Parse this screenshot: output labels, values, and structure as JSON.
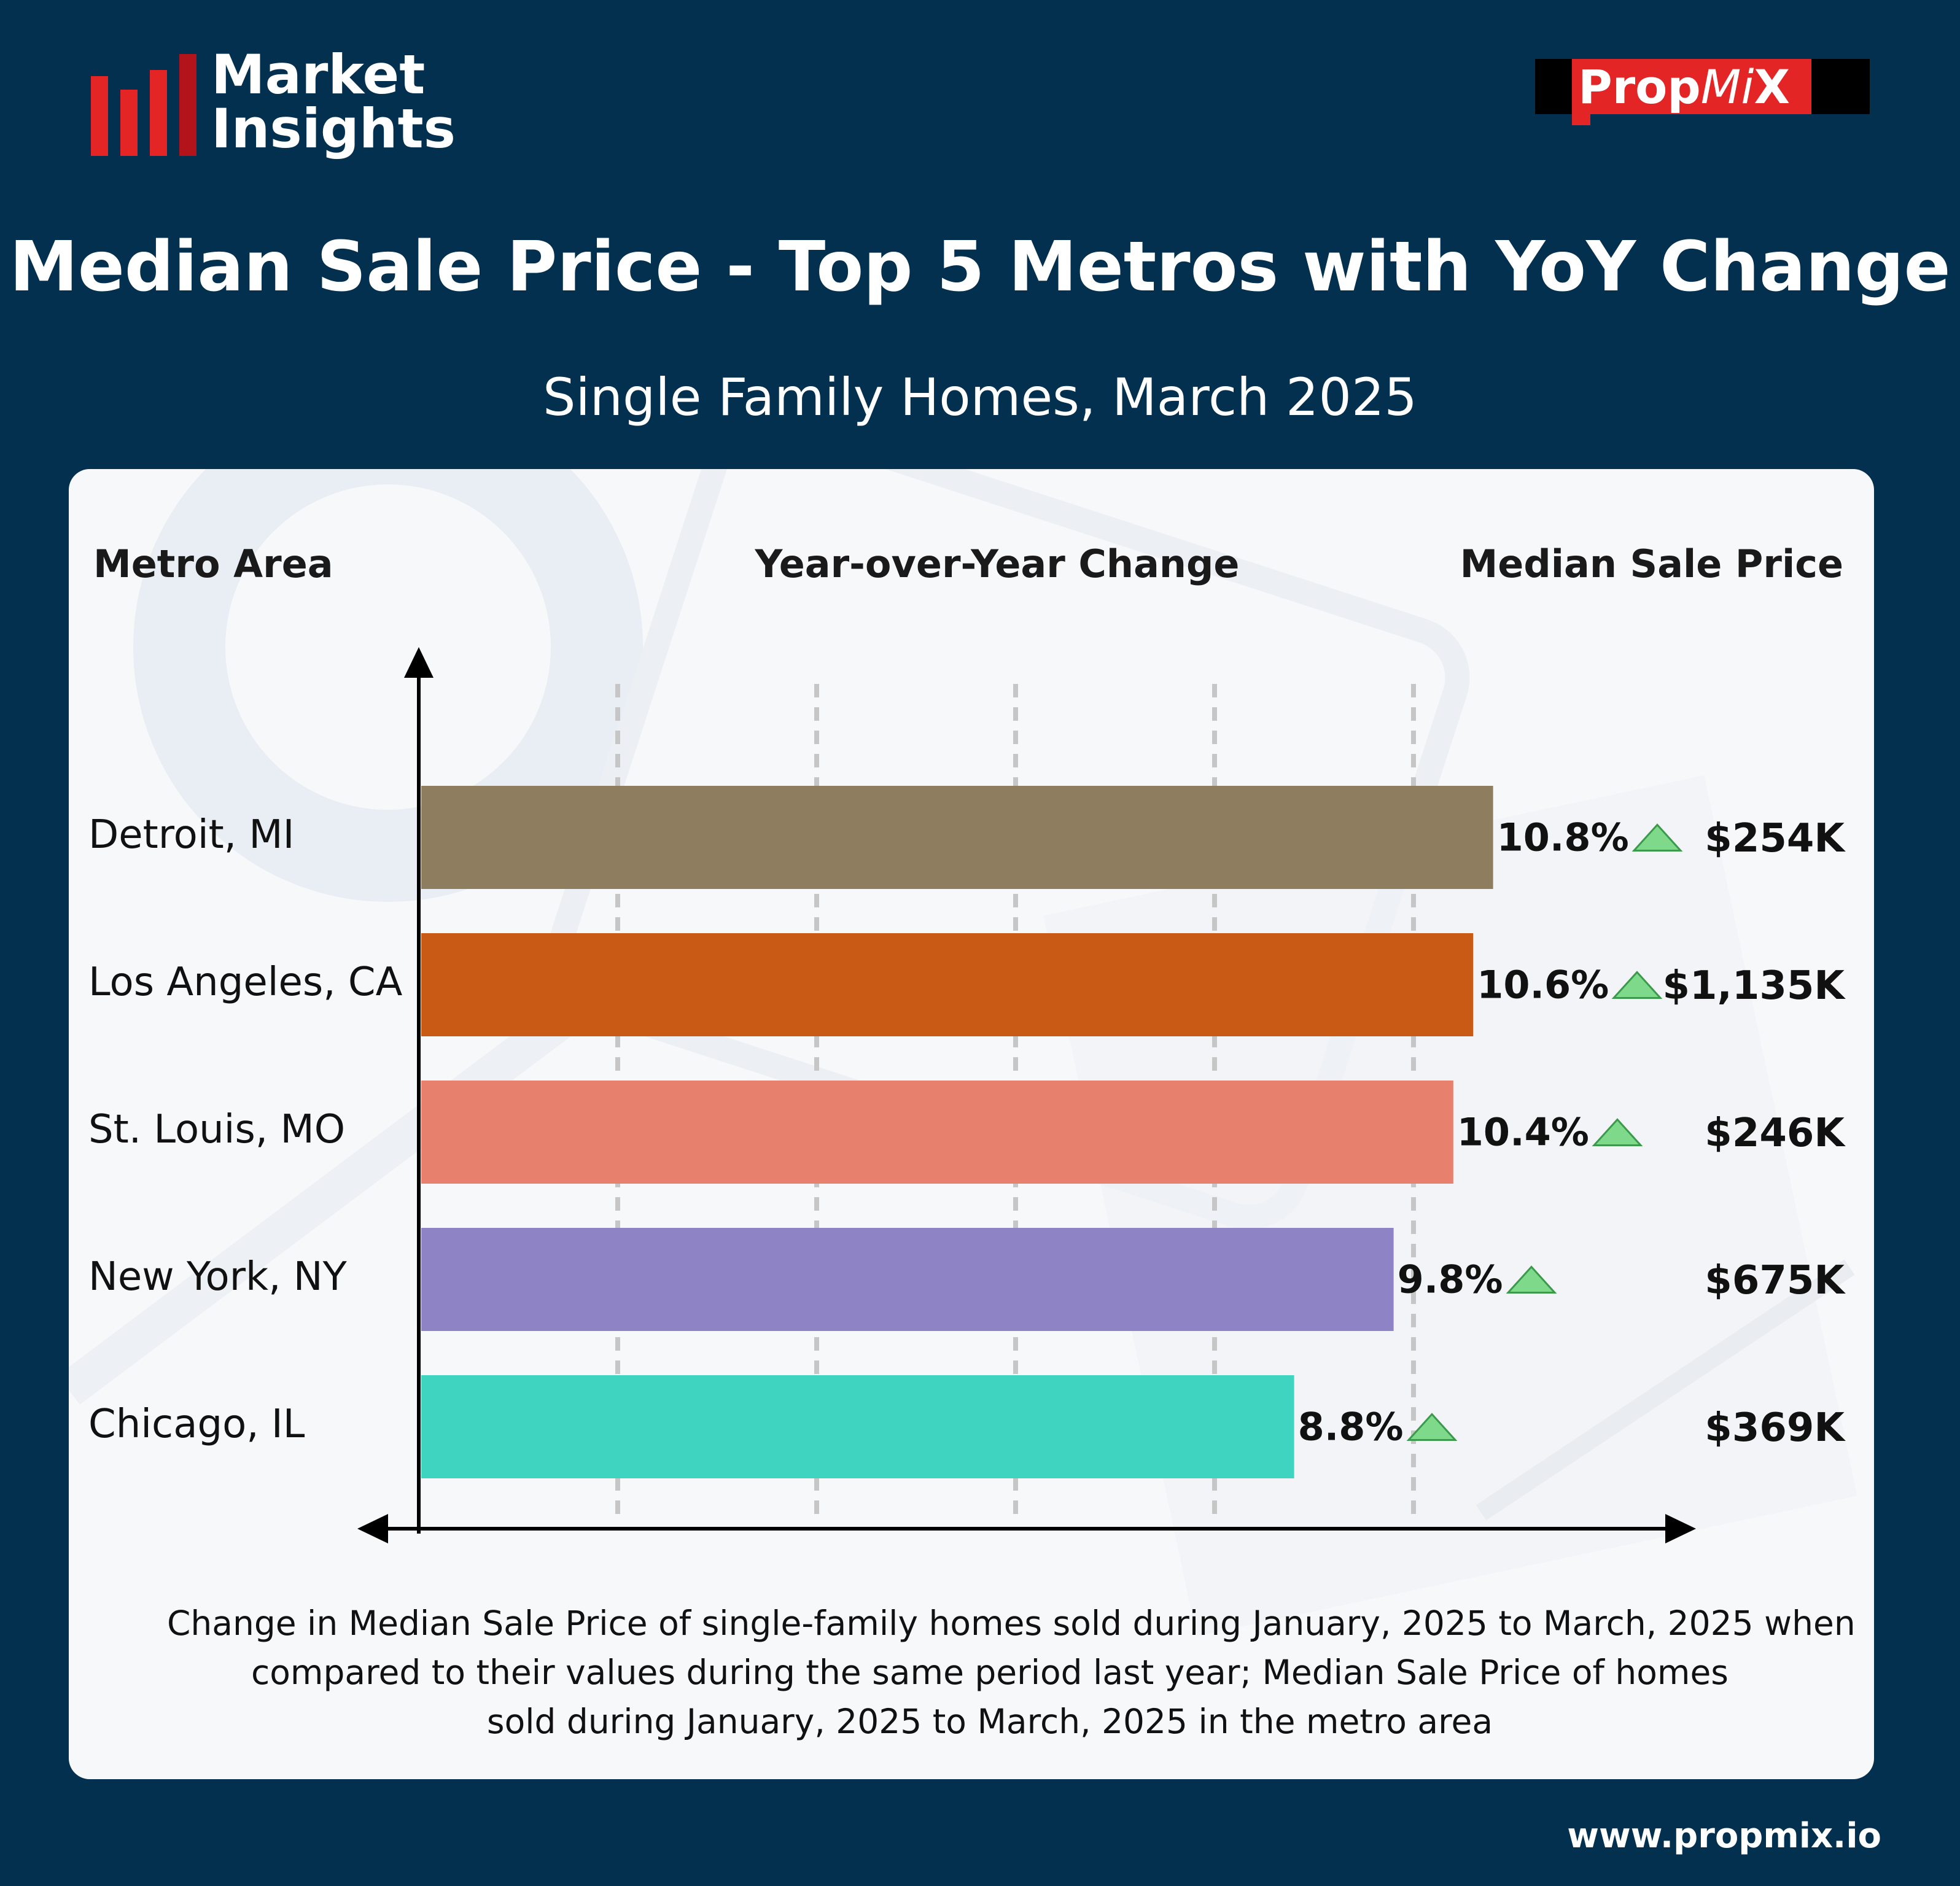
{
  "brand": {
    "left_logo_line1": "Market",
    "left_logo_line2": "Insights",
    "right_logo_prop": "Prop",
    "right_logo_mi": "Mi",
    "right_logo_x": "X",
    "website": "www.propmix.io"
  },
  "colors": {
    "background": "#04304f",
    "card": "#f7f8fa",
    "brand_red": "#e32526",
    "arrow_green": "#7fd98a"
  },
  "chart_data": {
    "type": "bar",
    "orientation": "horizontal",
    "title": "Median Sale Price - Top 5 Metros with YoY Change",
    "subtitle": "Single Family Homes, March 2025",
    "column_headers": {
      "metro": "Metro Area",
      "yoy": "Year-over-Year Change",
      "price": "Median Sale Price"
    },
    "categories": [
      "Detroit, MI",
      "Los Angeles, CA",
      "St. Louis, MO",
      "New York, NY",
      "Chicago, IL"
    ],
    "series": [
      {
        "values": [
          10.8,
          10.6,
          10.4,
          9.8,
          8.8
        ]
      }
    ],
    "value_labels": [
      "10.8%",
      "10.6%",
      "10.4%",
      "9.8%",
      "8.8%"
    ],
    "bar_colors": [
      "#8f7d60",
      "#c95a16",
      "#e8806e",
      "#8d83c5",
      "#3fd4bf"
    ],
    "trend": "up",
    "price_labels": [
      "$254K",
      "$1,135K",
      "$246K",
      "$675K",
      "$369K"
    ],
    "xlim": [
      0,
      12
    ],
    "gridlines": [
      2,
      4,
      6,
      8,
      10
    ],
    "grid": true,
    "legend": "none"
  },
  "footnote": {
    "line1": "Change in Median Sale Price of single-family homes sold during January, 2025 to March, 2025 when",
    "line2": "compared to their values during the same period last year; Median Sale Price of homes",
    "line3": "sold during January, 2025 to March, 2025 in the metro area"
  }
}
